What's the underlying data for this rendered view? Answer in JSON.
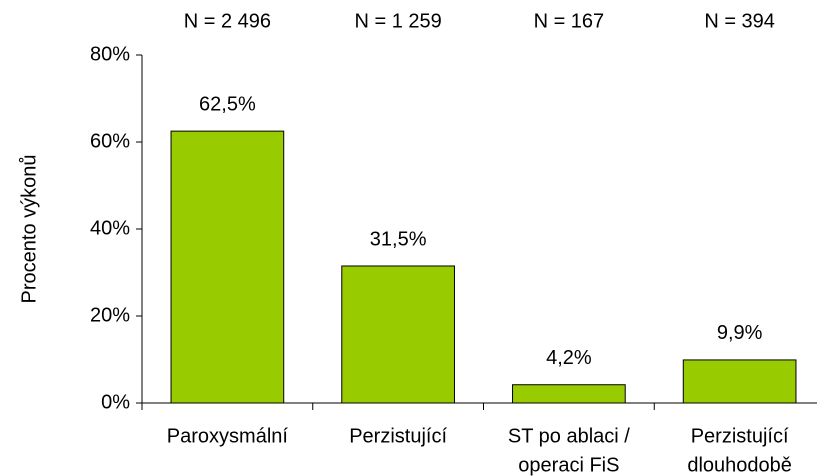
{
  "chart_data": {
    "type": "bar",
    "y_label": "Procento výkonů",
    "categories": [
      [
        "Paroxysmální"
      ],
      [
        "Perzistující"
      ],
      [
        "ST po ablaci /",
        "operaci FiS"
      ],
      [
        "Perzistující",
        "dlouhodobě"
      ]
    ],
    "annotations": [
      "N = 2 496",
      "N = 1 259",
      "N = 167",
      "N = 394"
    ],
    "values": [
      62.5,
      31.5,
      4.2,
      9.9
    ],
    "value_labels": [
      "62,5%",
      "31,5%",
      "4,2%",
      "9,9%"
    ],
    "color": "#99cc00",
    "ylim": [
      0,
      80
    ],
    "yticks": [
      {
        "value": 0,
        "label": "0%"
      },
      {
        "value": 20,
        "label": "20%"
      },
      {
        "value": 40,
        "label": "40%"
      },
      {
        "value": 60,
        "label": "60%"
      },
      {
        "value": 80,
        "label": "80%"
      }
    ],
    "grid": false
  }
}
